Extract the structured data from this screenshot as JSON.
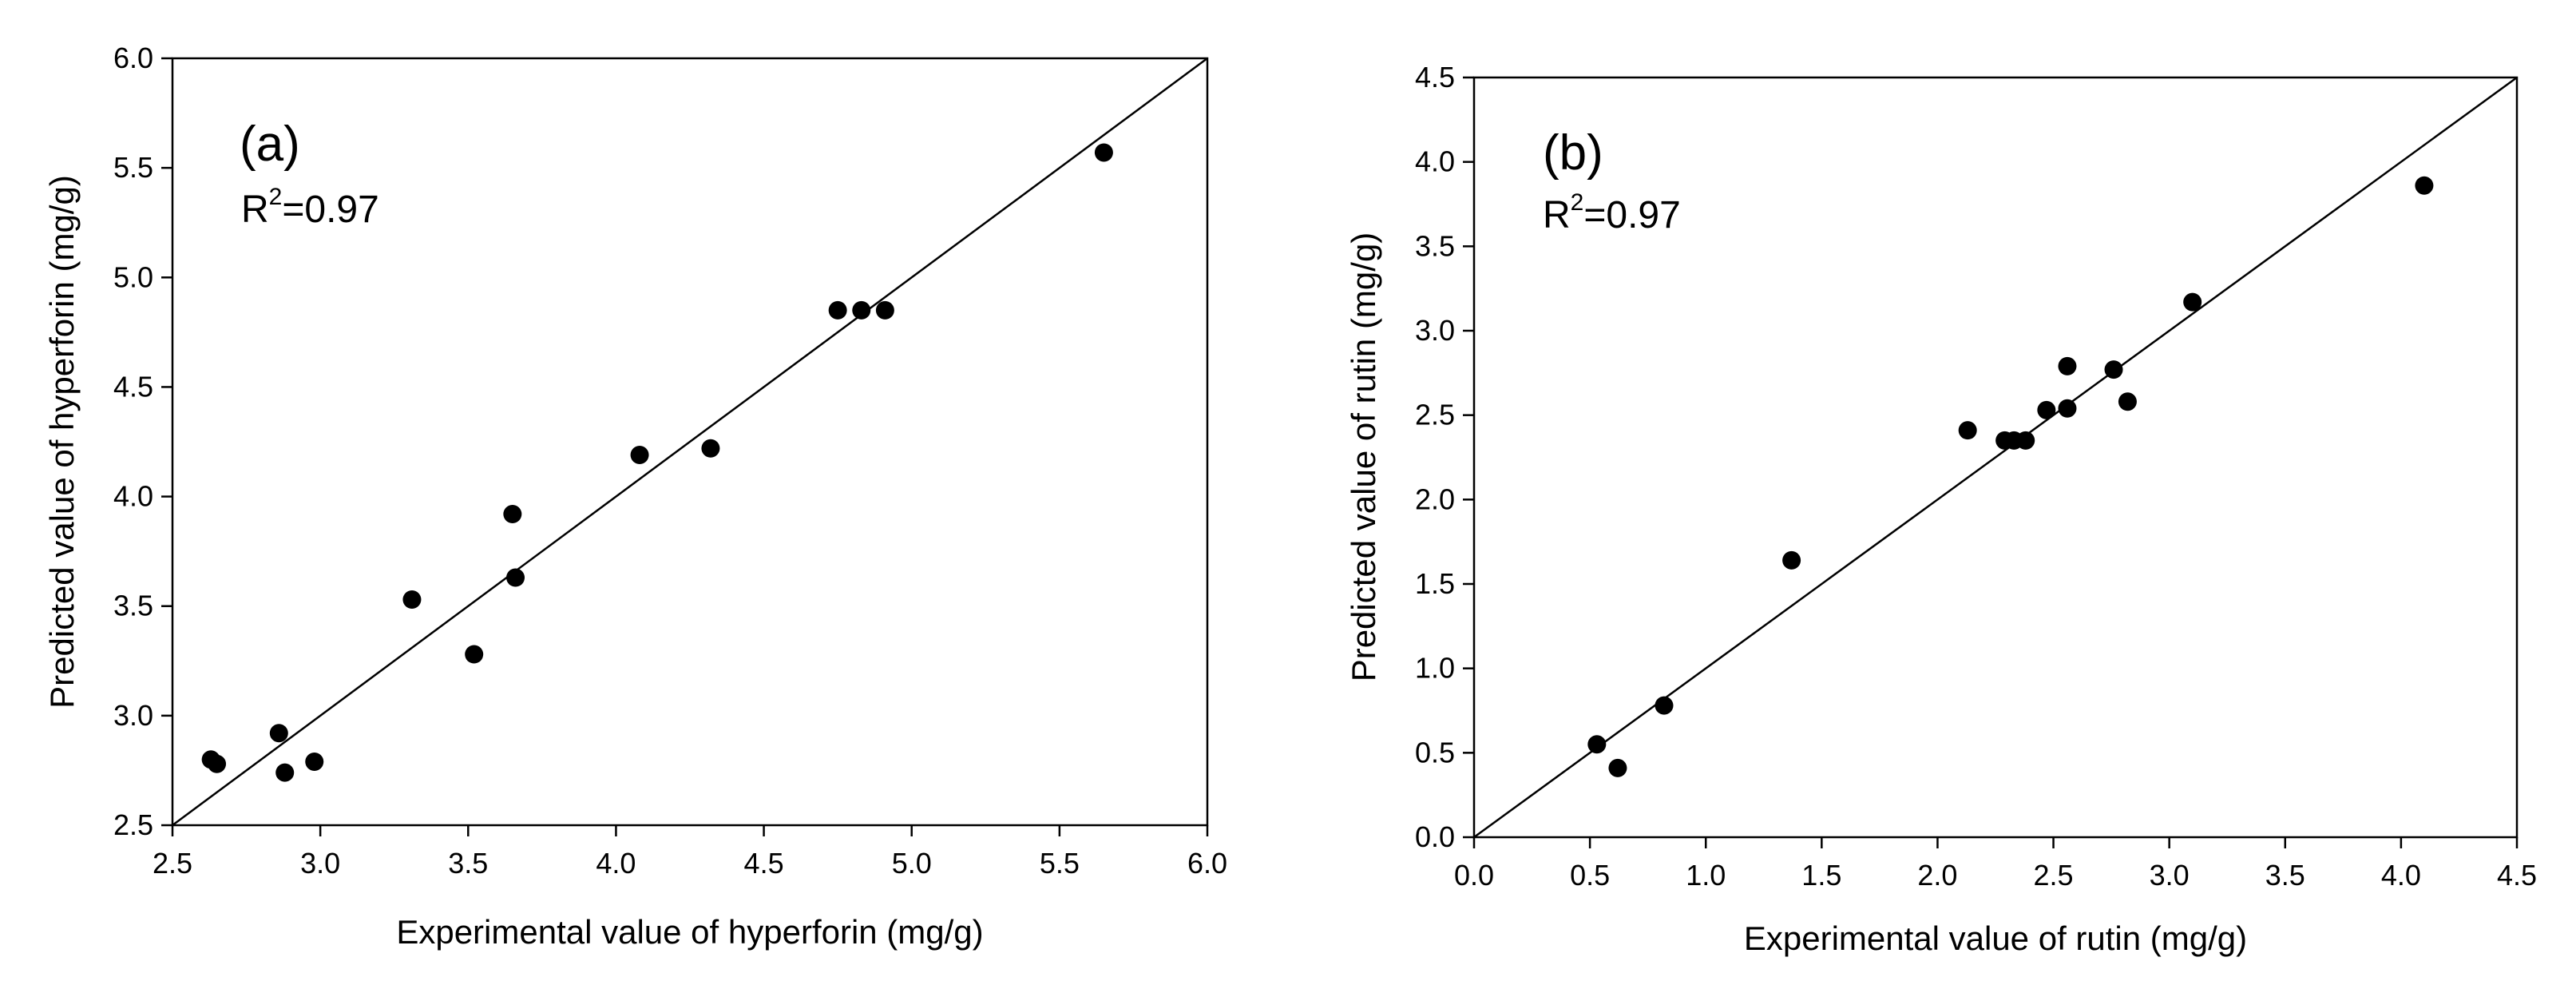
{
  "chart_data": [
    {
      "type": "scatter",
      "panel_label": "(a)",
      "r2_prefix": "R",
      "r2_exponent": "2",
      "r2_value": "=0.97",
      "xlabel": "Experimental value of hyperforin (mg/g)",
      "ylabel": "Predicted value of hyperforin (mg/g)",
      "xlim": [
        2.5,
        6.0
      ],
      "ylim": [
        2.5,
        6.0
      ],
      "xticks": [
        2.5,
        3.0,
        3.5,
        4.0,
        4.5,
        5.0,
        5.5,
        6.0
      ],
      "yticks": [
        2.5,
        3.0,
        3.5,
        4.0,
        4.5,
        5.0,
        5.5,
        6.0
      ],
      "xtick_labels": [
        "2.5",
        "3.0",
        "3.5",
        "4.0",
        "4.5",
        "5.0",
        "5.5",
        "6.0"
      ],
      "ytick_labels": [
        "2.5",
        "3.0",
        "3.5",
        "4.0",
        "4.5",
        "5.0",
        "5.5",
        "6.0"
      ],
      "reference_line": "y = x",
      "grid": false,
      "points": [
        {
          "x": 2.63,
          "y": 2.8
        },
        {
          "x": 2.65,
          "y": 2.78
        },
        {
          "x": 2.86,
          "y": 2.92
        },
        {
          "x": 2.88,
          "y": 2.74
        },
        {
          "x": 2.98,
          "y": 2.79
        },
        {
          "x": 3.31,
          "y": 3.53
        },
        {
          "x": 3.52,
          "y": 3.28
        },
        {
          "x": 3.65,
          "y": 3.92
        },
        {
          "x": 3.66,
          "y": 3.63
        },
        {
          "x": 4.08,
          "y": 4.19
        },
        {
          "x": 4.32,
          "y": 4.22
        },
        {
          "x": 4.75,
          "y": 4.85
        },
        {
          "x": 4.83,
          "y": 4.85
        },
        {
          "x": 4.91,
          "y": 4.85
        },
        {
          "x": 5.65,
          "y": 5.57
        }
      ]
    },
    {
      "type": "scatter",
      "panel_label": "(b)",
      "r2_prefix": "R",
      "r2_exponent": "2",
      "r2_value": "=0.97",
      "xlabel": "Experimental value of rutin (mg/g)",
      "ylabel": "Predicted value of rutin (mg/g)",
      "xlim": [
        0.0,
        4.5
      ],
      "ylim": [
        0.0,
        4.5
      ],
      "xticks": [
        0.0,
        0.5,
        1.0,
        1.5,
        2.0,
        2.5,
        3.0,
        3.5,
        4.0,
        4.5
      ],
      "yticks": [
        0.0,
        0.5,
        1.0,
        1.5,
        2.0,
        2.5,
        3.0,
        3.5,
        4.0,
        4.5
      ],
      "xtick_labels": [
        "0.0",
        "0.5",
        "1.0",
        "1.5",
        "2.0",
        "2.5",
        "3.0",
        "3.5",
        "4.0",
        "4.5"
      ],
      "ytick_labels": [
        "0.0",
        "0.5",
        "1.0",
        "1.5",
        "2.0",
        "2.5",
        "3.0",
        "3.5",
        "4.0",
        "4.5"
      ],
      "reference_line": "y = x",
      "grid": false,
      "points": [
        {
          "x": 0.53,
          "y": 0.55
        },
        {
          "x": 0.62,
          "y": 0.41
        },
        {
          "x": 0.82,
          "y": 0.78
        },
        {
          "x": 1.37,
          "y": 1.64
        },
        {
          "x": 2.13,
          "y": 2.41
        },
        {
          "x": 2.29,
          "y": 2.35
        },
        {
          "x": 2.33,
          "y": 2.35
        },
        {
          "x": 2.38,
          "y": 2.35
        },
        {
          "x": 2.47,
          "y": 2.53
        },
        {
          "x": 2.56,
          "y": 2.79
        },
        {
          "x": 2.56,
          "y": 2.54
        },
        {
          "x": 2.76,
          "y": 2.77
        },
        {
          "x": 2.82,
          "y": 2.58
        },
        {
          "x": 3.1,
          "y": 3.17
        },
        {
          "x": 4.1,
          "y": 3.86
        }
      ]
    }
  ]
}
